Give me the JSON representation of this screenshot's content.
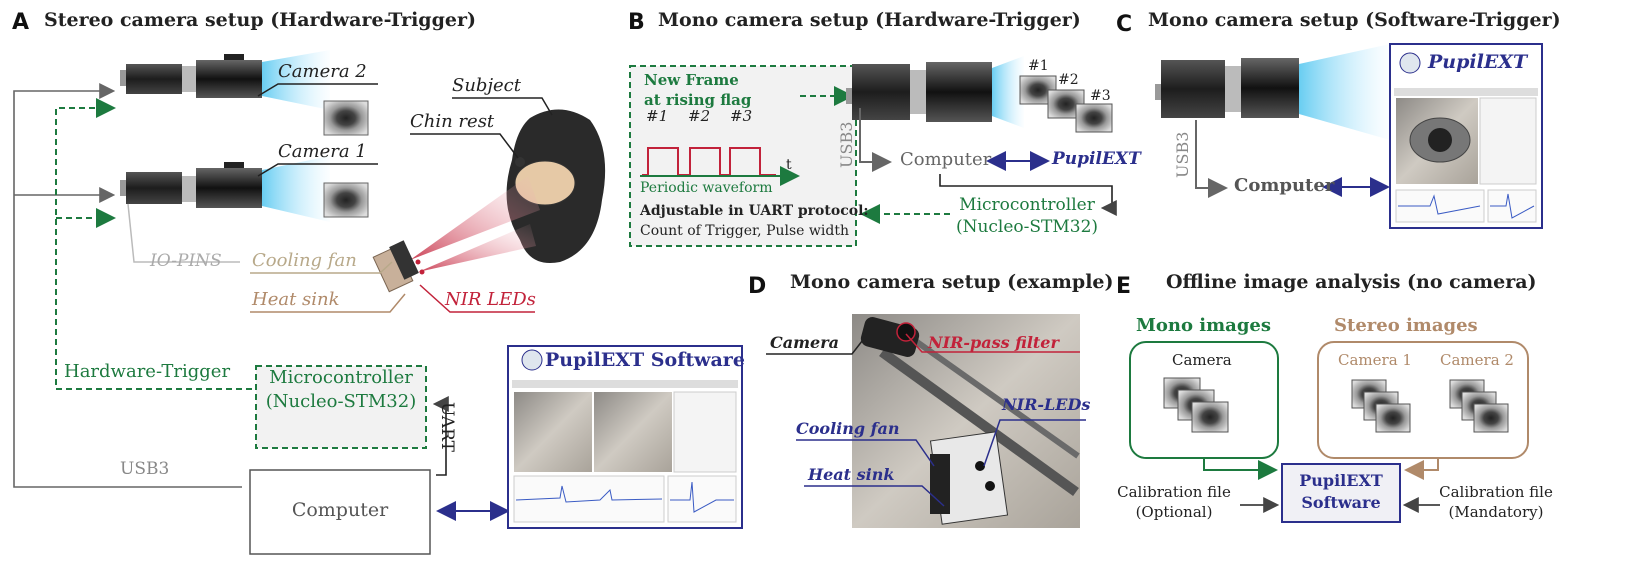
{
  "panels": {
    "A": {
      "letter": "A",
      "title": "Stereo camera setup (Hardware-Trigger)",
      "camera2": "Camera 2",
      "camera1": "Camera 1",
      "subject": "Subject",
      "chin_rest": "Chin rest",
      "io_pins": "IO-PINS",
      "cooling_fan": "Cooling fan",
      "heat_sink": "Heat sink",
      "nir_leds": "NIR LEDs",
      "hardware_trigger": "Hardware-Trigger",
      "microcontroller_line1": "Microcontroller",
      "microcontroller_line2": "(Nucleo-STM32)",
      "uart": "UART",
      "usb3": "USB3",
      "computer": "Computer",
      "software": "PupilEXT Software"
    },
    "B": {
      "letter": "B",
      "title": "Mono camera setup (Hardware-Trigger)",
      "new_frame_line1": "New Frame",
      "new_frame_line2": "at rising flag",
      "pulse1": "#1",
      "pulse2": "#2",
      "pulse3": "#3",
      "t_axis": "t",
      "periodic": "Periodic waveform",
      "adjustable": "Adjustable in UART protocol:",
      "count": "Count of Trigger, Pulse width",
      "frame1": "#1",
      "frame2": "#2",
      "frame3": "#3",
      "usb3": "USB3",
      "computer": "Computer",
      "pupilext": "PupilEXT",
      "microcontroller_line1": "Microcontroller",
      "microcontroller_line2": "(Nucleo-STM32)"
    },
    "C": {
      "letter": "C",
      "title": "Mono camera setup (Software-Trigger)",
      "pupilext": "PupilEXT",
      "usb3": "USB3",
      "computer": "Computer"
    },
    "D": {
      "letter": "D",
      "title": "Mono camera setup (example)",
      "camera": "Camera",
      "nir_filter": "NIR-pass filter",
      "nir_leds": "NIR-LEDs",
      "cooling_fan": "Cooling fan",
      "heat_sink": "Heat sink"
    },
    "E": {
      "letter": "E",
      "title": "Offline image analysis (no camera)",
      "mono_images": "Mono images",
      "stereo_images": "Stereo images",
      "camera": "Camera",
      "camera1": "Camera 1",
      "camera2": "Camera 2",
      "software_line1": "PupilEXT",
      "software_line2": "Software",
      "calib_left_line1": "Calibration file",
      "calib_left_line2": "(Optional)",
      "calib_right_line1": "Calibration file",
      "calib_right_line2": "(Mandatory)"
    }
  },
  "colors": {
    "green": "#1d7a3f",
    "blue": "#2b2f8c",
    "red": "#c2223a",
    "tan": "#b08a6a",
    "gray": "#666666"
  }
}
